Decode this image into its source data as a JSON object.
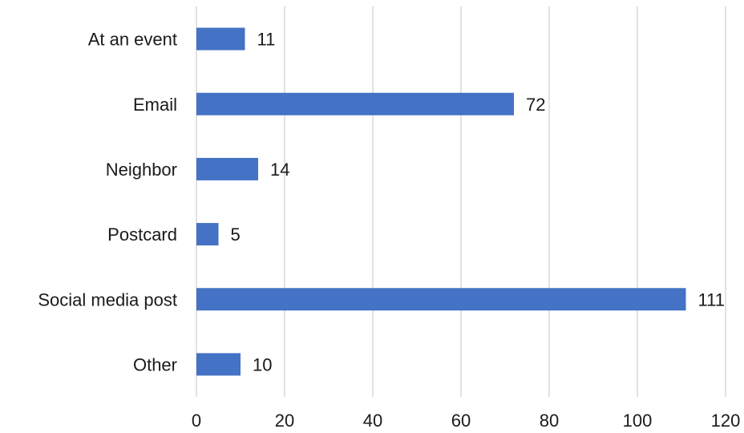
{
  "chart_data": {
    "type": "bar",
    "orientation": "horizontal",
    "categories": [
      "At an event",
      "Email",
      "Neighbor",
      "Postcard",
      "Social media post",
      "Other"
    ],
    "values": [
      11,
      72,
      14,
      5,
      111,
      10
    ],
    "value_labels": [
      "11",
      "72",
      "14",
      "5",
      "111",
      "10"
    ],
    "xlim": [
      0,
      120
    ],
    "xticks": [
      "0",
      "20",
      "40",
      "60",
      "80",
      "100",
      "120"
    ],
    "bar_color": "#4472C4",
    "grid": "vertical",
    "legend": "none"
  }
}
